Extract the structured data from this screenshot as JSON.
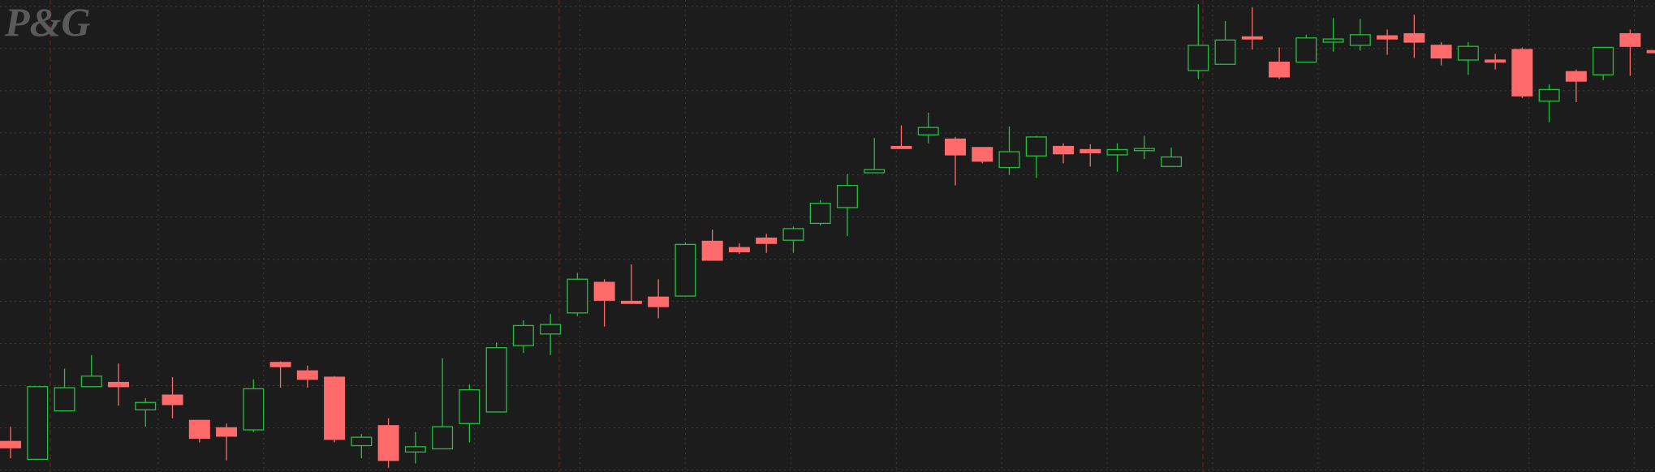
{
  "logo": "P&G",
  "chart_data": {
    "type": "candlestick",
    "ylim": [
      0,
      448
    ],
    "yticks": [
      2,
      42,
      82,
      122,
      162,
      202,
      242,
      282,
      322,
      362,
      402,
      442
    ],
    "grid": true,
    "up_color": "#22c03c",
    "down_color": "#ff6b6b",
    "open": [
      29,
      12,
      58,
      81,
      85,
      59,
      73,
      49,
      42,
      40,
      104,
      96,
      90,
      25,
      44,
      19,
      22,
      46,
      57,
      120,
      131,
      151,
      180,
      162,
      166,
      167,
      219,
      213,
      222,
      220,
      236,
      251,
      284,
      309,
      320,
      316,
      308,
      289,
      300,
      309,
      306,
      301,
      305,
      290,
      381,
      387,
      413,
      389,
      389,
      408,
      405,
      414,
      416,
      405,
      391,
      391,
      401,
      352,
      380,
      377,
      416,
      400
    ],
    "high": [
      43,
      81,
      98,
      111,
      103,
      70,
      90,
      49,
      46,
      88,
      105,
      101,
      91,
      36,
      51,
      38,
      108,
      83,
      123,
      144,
      150,
      189,
      183,
      197,
      183,
      218,
      230,
      217,
      226,
      233,
      258,
      283,
      317,
      329,
      341,
      318,
      308,
      328,
      319,
      312,
      311,
      312,
      319,
      308,
      444,
      428,
      441,
      403,
      415,
      431,
      430,
      420,
      434,
      408,
      408,
      397,
      403,
      368,
      382,
      403,
      420,
      421
    ],
    "low": [
      13,
      12,
      58,
      81,
      63,
      43,
      51,
      28,
      11,
      38,
      80,
      80,
      28,
      13,
      4,
      8,
      22,
      28,
      57,
      113,
      111,
      148,
      138,
      160,
      146,
      167,
      201,
      207,
      208,
      208,
      234,
      224,
      284,
      307,
      312,
      272,
      293,
      282,
      279,
      293,
      290,
      285,
      297,
      290,
      373,
      387,
      401,
      373,
      389,
      399,
      400,
      396,
      393,
      386,
      377,
      382,
      355,
      332,
      351,
      372,
      376,
      380
    ],
    "close": [
      23,
      81,
      80,
      91,
      81,
      66,
      64,
      32,
      34,
      79,
      100,
      88,
      31,
      33,
      11,
      24,
      43,
      78,
      118,
      139,
      140,
      183,
      163,
      160,
      157,
      216,
      201,
      209,
      217,
      231,
      255,
      272,
      287,
      307,
      327,
      301,
      295,
      304,
      318,
      302,
      303,
      306,
      307,
      299,
      405,
      410,
      411,
      375,
      412,
      411,
      415,
      411,
      408,
      393,
      404,
      389,
      357,
      363,
      371,
      403,
      404,
      398
    ]
  }
}
